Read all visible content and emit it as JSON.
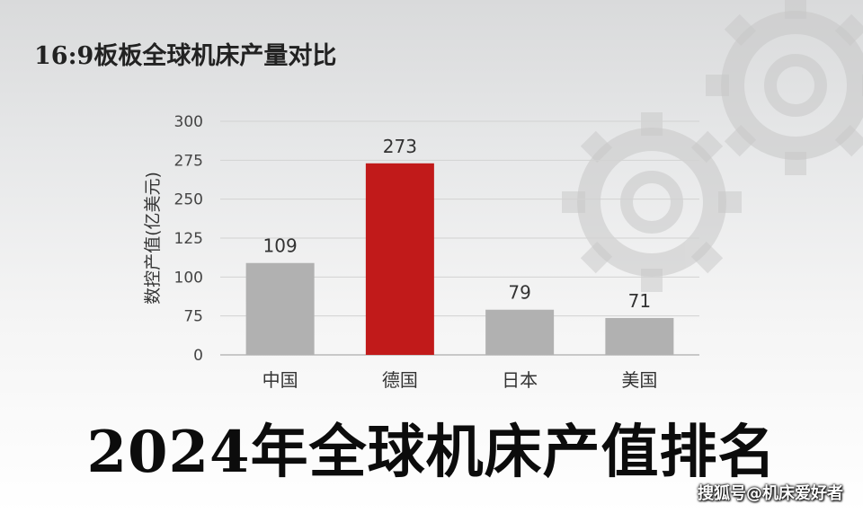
{
  "header": {
    "subtitle": "16:9板板全球机床产量对比"
  },
  "footer": {
    "title": "2024年全球机床产值排名",
    "watermark": "搜狐号@机床爱好者"
  },
  "colors": {
    "highlight": "#c11a1a",
    "bar": "#b1b1b1",
    "grid": "#d2d2d2"
  },
  "chart_data": {
    "type": "bar",
    "categories": [
      "中国",
      "德国",
      "日本",
      "美国"
    ],
    "values": [
      109,
      273,
      79,
      71
    ],
    "data_labels": [
      "109",
      "273",
      "79",
      "71"
    ],
    "highlight_index": 1,
    "ylabel": "数控产值(亿美元)",
    "yticks": [
      0,
      75,
      100,
      125,
      250,
      275,
      300
    ],
    "ylim": [
      0,
      300
    ],
    "grid": true
  }
}
